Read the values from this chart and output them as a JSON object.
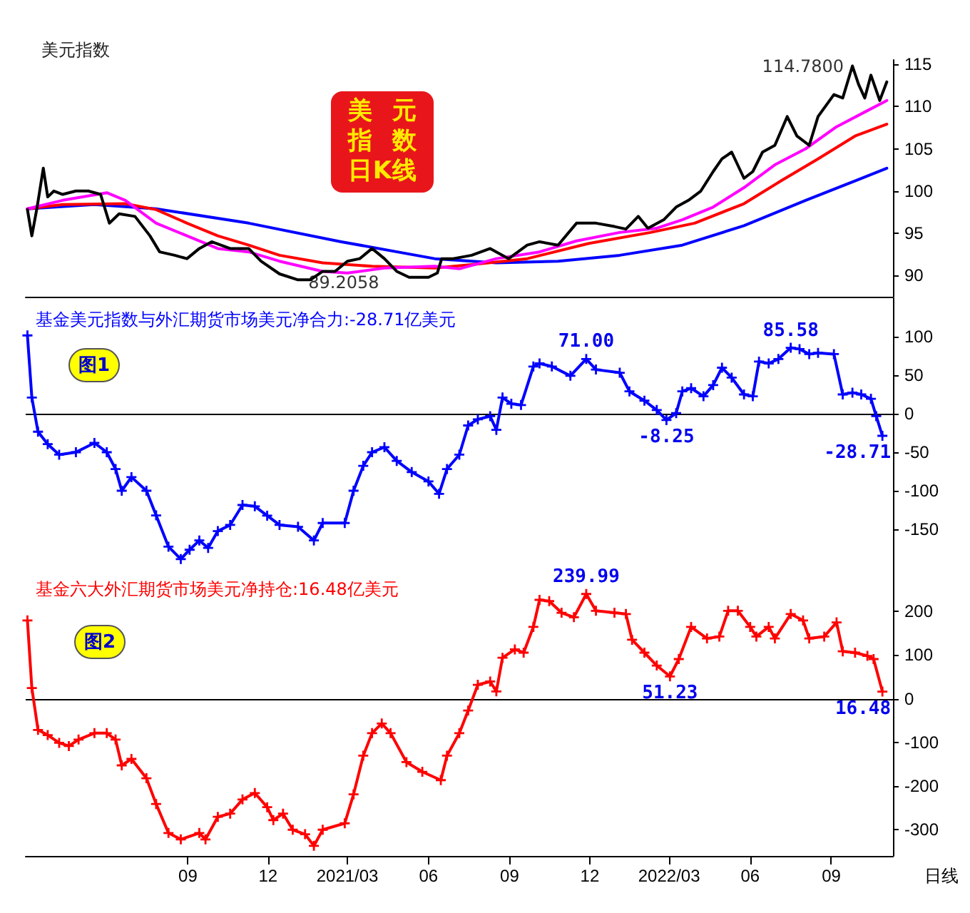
{
  "chart_data": [
    {
      "type": "line",
      "title": "美元指数",
      "annotations": [
        "美元指数日K线",
        {
          "text": "114.7800",
          "x": "2022-09-25",
          "y": 114.78
        },
        {
          "text": "89.2058",
          "x": "2021-01-06",
          "y": 89.2058
        }
      ],
      "xlim": [
        "2020-03-01",
        "2022-11-10"
      ],
      "ylim": [
        87.5,
        115.5
      ],
      "yticks": [
        90,
        95,
        100,
        105,
        110,
        115
      ],
      "tick_labels": "y",
      "marker": "none",
      "line_style": "solid",
      "series": [
        {
          "color": "#000000",
          "x": [
            "2020-03-03",
            "2020-03-08",
            "2020-03-14",
            "2020-03-21",
            "2020-03-26",
            "2020-04-02",
            "2020-04-12",
            "2020-04-27",
            "2020-05-11",
            "2020-05-25",
            "2020-06-04",
            "2020-06-15",
            "2020-07-03",
            "2020-07-20",
            "2020-07-31",
            "2020-08-17",
            "2020-08-31",
            "2020-09-14",
            "2020-09-28",
            "2020-10-19",
            "2020-11-09",
            "2020-11-23",
            "2020-12-14",
            "2021-01-04",
            "2021-01-18",
            "2021-02-01",
            "2021-02-15",
            "2021-03-01",
            "2021-03-15",
            "2021-03-29",
            "2021-04-12",
            "2021-04-26",
            "2021-05-10",
            "2021-06-01",
            "2021-06-11",
            "2021-06-16",
            "2021-06-29",
            "2021-07-20",
            "2021-08-10",
            "2021-08-31",
            "2021-09-21",
            "2021-10-05",
            "2021-10-26",
            "2021-11-16",
            "2021-12-08",
            "2021-12-29",
            "2022-01-11",
            "2022-01-25",
            "2022-02-05",
            "2022-02-23",
            "2022-03-09",
            "2022-03-23",
            "2022-04-06",
            "2022-04-20",
            "2022-04-30",
            "2022-05-11",
            "2022-05-25",
            "2022-06-04",
            "2022-06-15",
            "2022-06-29",
            "2022-07-13",
            "2022-07-24",
            "2022-08-07",
            "2022-08-17",
            "2022-09-04",
            "2022-09-14",
            "2022-09-25",
            "2022-10-02",
            "2022-10-09",
            "2022-10-16",
            "2022-10-26",
            "2022-11-03"
          ],
          "values": [
            97.8,
            94.7,
            98.1,
            102.7,
            99.3,
            100,
            99.6,
            100,
            100,
            99.6,
            96.2,
            97.3,
            97,
            94.7,
            92.8,
            92.4,
            92,
            93.2,
            94,
            93.2,
            93.2,
            91.7,
            90.2,
            89.5,
            89.5,
            90.5,
            90.5,
            91.7,
            92,
            93.2,
            92,
            90.5,
            89.8,
            89.8,
            90.3,
            92,
            92,
            92.4,
            93.2,
            92,
            93.6,
            94,
            93.6,
            96.2,
            96.2,
            95.8,
            95.5,
            97,
            95.6,
            96.6,
            98.1,
            98.9,
            100,
            102.3,
            103.8,
            104.6,
            101.5,
            102.3,
            104.6,
            105.4,
            108.8,
            106.5,
            105.4,
            108.8,
            111.4,
            111,
            114.78,
            112.6,
            111,
            113.7,
            110.7,
            112.9
          ]
        },
        {
          "color": "#ff00ff",
          "x": [
            "2020-03-03",
            "2020-04-12",
            "2020-06-01",
            "2020-06-22",
            "2020-07-27",
            "2020-08-31",
            "2020-10-05",
            "2020-11-09",
            "2020-12-14",
            "2021-02-01",
            "2021-03-01",
            "2021-04-12",
            "2021-06-08",
            "2021-07-06",
            "2021-08-17",
            "2021-10-05",
            "2021-11-16",
            "2022-01-04",
            "2022-02-15",
            "2022-03-16",
            "2022-04-20",
            "2022-05-25",
            "2022-06-29",
            "2022-08-03",
            "2022-09-07",
            "2022-10-12",
            "2022-11-03"
          ],
          "values": [
            97.9,
            98.9,
            99.8,
            98.9,
            96.2,
            94.7,
            93.2,
            92.8,
            91.7,
            90.5,
            90.3,
            90.9,
            91.1,
            90.8,
            92,
            92.8,
            94.1,
            95.1,
            95.6,
            96.6,
            98.1,
            100.4,
            103.1,
            105,
            107.6,
            109.5,
            110.7
          ]
        },
        {
          "color": "#ff0000",
          "x": [
            "2020-03-03",
            "2020-04-12",
            "2020-06-22",
            "2020-07-27",
            "2020-08-31",
            "2020-10-05",
            "2020-11-09",
            "2020-12-14",
            "2021-02-01",
            "2021-03-29",
            "2021-06-08",
            "2021-07-20",
            "2021-09-21",
            "2021-11-30",
            "2022-02-08",
            "2022-03-30",
            "2022-05-25",
            "2022-07-06",
            "2022-08-17",
            "2022-09-28",
            "2022-11-03"
          ],
          "values": [
            97.9,
            98.4,
            98.5,
            97.8,
            96.2,
            94.7,
            93.6,
            92.4,
            91.5,
            91.1,
            90.9,
            91.3,
            92,
            93.8,
            95.1,
            96.2,
            98.5,
            101.2,
            103.8,
            106.5,
            107.9
          ]
        },
        {
          "color": "#0000ff",
          "x": [
            "2020-03-03",
            "2020-05-18",
            "2020-07-27",
            "2020-11-09",
            "2021-02-22",
            "2021-06-08",
            "2021-08-17",
            "2021-10-26",
            "2022-01-04",
            "2022-03-16",
            "2022-05-25",
            "2022-08-03",
            "2022-09-28",
            "2022-11-03"
          ],
          "values": [
            97.9,
            98.4,
            97.9,
            96.2,
            94,
            92,
            91.5,
            91.7,
            92.4,
            93.6,
            95.9,
            98.9,
            101.2,
            102.7
          ]
        }
      ]
    },
    {
      "type": "line",
      "title": "基金美元指数与外汇期货市场美元净合力:-28.71亿美元",
      "annotations": [
        "图1"
      ],
      "xlim": [
        "2020-03-01",
        "2022-11-10"
      ],
      "ylim": [
        -200,
        150
      ],
      "yticks": [
        -150,
        -100,
        -50,
        0,
        50,
        100
      ],
      "tick_labels": "y",
      "marker": "cross",
      "line_style": "solid",
      "ref_lines": [
        {
          "axis": "y",
          "value": 0,
          "color": "#000000"
        }
      ],
      "series": [
        {
          "color": "#0000ff",
          "x": [
            "2020-03-03",
            "2020-03-08",
            "2020-03-15",
            "2020-03-26",
            "2020-04-08",
            "2020-04-27",
            "2020-05-18",
            "2020-06-01",
            "2020-06-11",
            "2020-06-18",
            "2020-06-29",
            "2020-07-16",
            "2020-07-27",
            "2020-08-10",
            "2020-08-24",
            "2020-09-03",
            "2020-09-14",
            "2020-09-24",
            "2020-10-05",
            "2020-10-19",
            "2020-11-02",
            "2020-11-16",
            "2020-11-30",
            "2020-12-14",
            "2021-01-04",
            "2021-01-22",
            "2021-02-01",
            "2021-02-26",
            "2021-03-08",
            "2021-03-19",
            "2021-03-29",
            "2021-04-12",
            "2021-04-26",
            "2021-05-13",
            "2021-06-01",
            "2021-06-13",
            "2021-06-22",
            "2021-07-06",
            "2021-07-16",
            "2021-07-27",
            "2021-08-10",
            "2021-08-17",
            "2021-08-24",
            "2021-09-03",
            "2021-09-14",
            "2021-09-28",
            "2021-10-05",
            "2021-10-19",
            "2021-11-09",
            "2021-11-27",
            "2021-12-08",
            "2022-01-04",
            "2022-01-15",
            "2022-02-01",
            "2022-02-15",
            "2022-02-26",
            "2022-03-09",
            "2022-03-16",
            "2022-03-26",
            "2022-04-09",
            "2022-04-20",
            "2022-04-30",
            "2022-05-11",
            "2022-05-25",
            "2022-06-04",
            "2022-06-11",
            "2022-06-22",
            "2022-07-03",
            "2022-07-17",
            "2022-07-27",
            "2022-08-07",
            "2022-08-17",
            "2022-09-04",
            "2022-09-14",
            "2022-09-25",
            "2022-10-05",
            "2022-10-16",
            "2022-10-22",
            "2022-10-29"
          ],
          "values": [
            101.6,
            21,
            -23.4,
            -39.5,
            -53.2,
            -50,
            -37.9,
            -50,
            -71.8,
            -100,
            -82.3,
            -100,
            -132,
            -172.6,
            -188.7,
            -176.6,
            -164.5,
            -174.2,
            -152.4,
            -144.4,
            -118.5,
            -120.2,
            -132.3,
            -144.4,
            -146.8,
            -164.5,
            -141.9,
            -141.9,
            -100,
            -67.7,
            -50,
            -43.5,
            -61.3,
            -75.8,
            -87.9,
            -104,
            -71.8,
            -53.2,
            -15.3,
            -7.3,
            -3.2,
            -21,
            21,
            12.9,
            11.3,
            61.3,
            65.3,
            61.3,
            49.2,
            71.0,
            57.3,
            53.2,
            29,
            16.9,
            4.8,
            -8.25,
            0.8,
            29,
            33.1,
            22.6,
            37.1,
            59.7,
            46.8,
            25,
            22.6,
            67.7,
            65.3,
            71,
            85.58,
            83.9,
            77.4,
            79,
            77.4,
            25,
            27.4,
            25,
            19.4,
            -3.2,
            -28.71
          ],
          "value_labels": [
            null,
            null,
            null,
            null,
            null,
            null,
            null,
            null,
            null,
            null,
            null,
            null,
            null,
            null,
            null,
            null,
            null,
            null,
            null,
            null,
            null,
            null,
            null,
            null,
            null,
            null,
            null,
            null,
            null,
            null,
            null,
            null,
            null,
            null,
            null,
            null,
            null,
            null,
            null,
            null,
            null,
            null,
            null,
            null,
            null,
            null,
            null,
            null,
            null,
            "71.00",
            null,
            null,
            null,
            null,
            null,
            "-8.25",
            null,
            null,
            null,
            null,
            null,
            null,
            null,
            null,
            null,
            null,
            null,
            null,
            "85.58",
            null,
            null,
            null,
            null,
            null,
            null,
            null,
            null,
            null,
            "-28.71"
          ]
        }
      ]
    },
    {
      "type": "line",
      "title": "基金六大外汇期货市场美元净持仓:16.48亿美元",
      "annotations": [
        "图2",
        "日线"
      ],
      "xlim": [
        "2020-03-01",
        "2022-11-10"
      ],
      "xticks": [
        {
          "value": "2020-09-01",
          "label": "09"
        },
        {
          "value": "2020-12-01",
          "label": "12"
        },
        {
          "value": "2021-03-01",
          "label": "2021/03"
        },
        {
          "value": "2021-06-01",
          "label": "06"
        },
        {
          "value": "2021-09-01",
          "label": "09"
        },
        {
          "value": "2021-12-01",
          "label": "12"
        },
        {
          "value": "2022-03-01",
          "label": "2022/03"
        },
        {
          "value": "2022-06-01",
          "label": "06"
        },
        {
          "value": "2022-09-01",
          "label": "09"
        }
      ],
      "ylim": [
        -360,
        300
      ],
      "yticks": [
        -300,
        -200,
        -100,
        0,
        100,
        200
      ],
      "marker": "cross",
      "line_style": "solid",
      "ref_lines": [
        {
          "axis": "y",
          "value": 0,
          "color": "#000000"
        }
      ],
      "series": [
        {
          "color": "#ff0000",
          "x": [
            "2020-03-03",
            "2020-03-08",
            "2020-03-15",
            "2020-03-26",
            "2020-04-08",
            "2020-04-19",
            "2020-04-30",
            "2020-05-18",
            "2020-06-01",
            "2020-06-11",
            "2020-06-18",
            "2020-06-29",
            "2020-07-16",
            "2020-07-27",
            "2020-08-10",
            "2020-08-24",
            "2020-09-14",
            "2020-09-21",
            "2020-10-05",
            "2020-10-19",
            "2020-11-02",
            "2020-11-16",
            "2020-11-30",
            "2020-12-07",
            "2020-12-18",
            "2020-12-29",
            "2021-01-12",
            "2021-01-22",
            "2021-02-01",
            "2021-02-26",
            "2021-03-08",
            "2021-03-19",
            "2021-03-29",
            "2021-04-09",
            "2021-04-19",
            "2021-05-07",
            "2021-05-25",
            "2021-06-15",
            "2021-06-22",
            "2021-07-06",
            "2021-07-16",
            "2021-07-27",
            "2021-08-10",
            "2021-08-17",
            "2021-08-24",
            "2021-09-07",
            "2021-09-17",
            "2021-09-28",
            "2021-10-05",
            "2021-10-16",
            "2021-10-30",
            "2021-11-13",
            "2021-11-27",
            "2021-12-08",
            "2021-12-29",
            "2022-01-11",
            "2022-01-18",
            "2022-02-01",
            "2022-02-15",
            "2022-03-02",
            "2022-03-12",
            "2022-03-26",
            "2022-04-13",
            "2022-04-27",
            "2022-05-07",
            "2022-05-18",
            "2022-06-01",
            "2022-06-08",
            "2022-06-22",
            "2022-06-29",
            "2022-07-17",
            "2022-07-31",
            "2022-08-07",
            "2022-08-24",
            "2022-09-07",
            "2022-09-14",
            "2022-09-28",
            "2022-10-12",
            "2022-10-19",
            "2022-10-29"
          ],
          "values": [
            179.4,
            24.5,
            -71.4,
            -83.2,
            -100.9,
            -108.3,
            -93.5,
            -78.8,
            -78.8,
            -93.5,
            -152.5,
            -137.8,
            -182,
            -241,
            -307.4,
            -322.1,
            -307.4,
            -322.1,
            -270.5,
            -263.1,
            -230.7,
            -215.9,
            -248.4,
            -277.9,
            -263.1,
            -300,
            -310.3,
            -336.9,
            -300,
            -285.3,
            -218.9,
            -130.4,
            -78.8,
            -56.6,
            -78.8,
            -145.1,
            -167.3,
            -186.4,
            -130.4,
            -78.8,
            -27.1,
            32,
            39.5,
            16.9,
            93.8,
            113,
            105.6,
            164.6,
            226.5,
            223.6,
            197,
            186.7,
            239.99,
            201.5,
            197,
            194.1,
            135.1,
            105.6,
            76.1,
            51.23,
            90.9,
            164.6,
            138.1,
            142.5,
            201.5,
            201.5,
            164.6,
            142.5,
            164.6,
            138.1,
            194.1,
            179.4,
            138.1,
            142.5,
            174.9,
            108.6,
            105.6,
            98.2,
            90.9,
            16.48
          ],
          "value_labels": [
            null,
            null,
            null,
            null,
            null,
            null,
            null,
            null,
            null,
            null,
            null,
            null,
            null,
            null,
            null,
            null,
            null,
            null,
            null,
            null,
            null,
            null,
            null,
            null,
            null,
            null,
            null,
            null,
            null,
            null,
            null,
            null,
            null,
            null,
            null,
            null,
            null,
            null,
            null,
            null,
            null,
            null,
            null,
            null,
            null,
            null,
            null,
            null,
            null,
            null,
            null,
            null,
            "239.99",
            null,
            null,
            null,
            null,
            null,
            null,
            "51.23",
            null,
            null,
            null,
            null,
            null,
            null,
            null,
            null,
            null,
            null,
            null,
            null,
            null,
            null,
            null,
            null,
            null,
            null,
            null,
            "16.48"
          ]
        }
      ]
    }
  ]
}
